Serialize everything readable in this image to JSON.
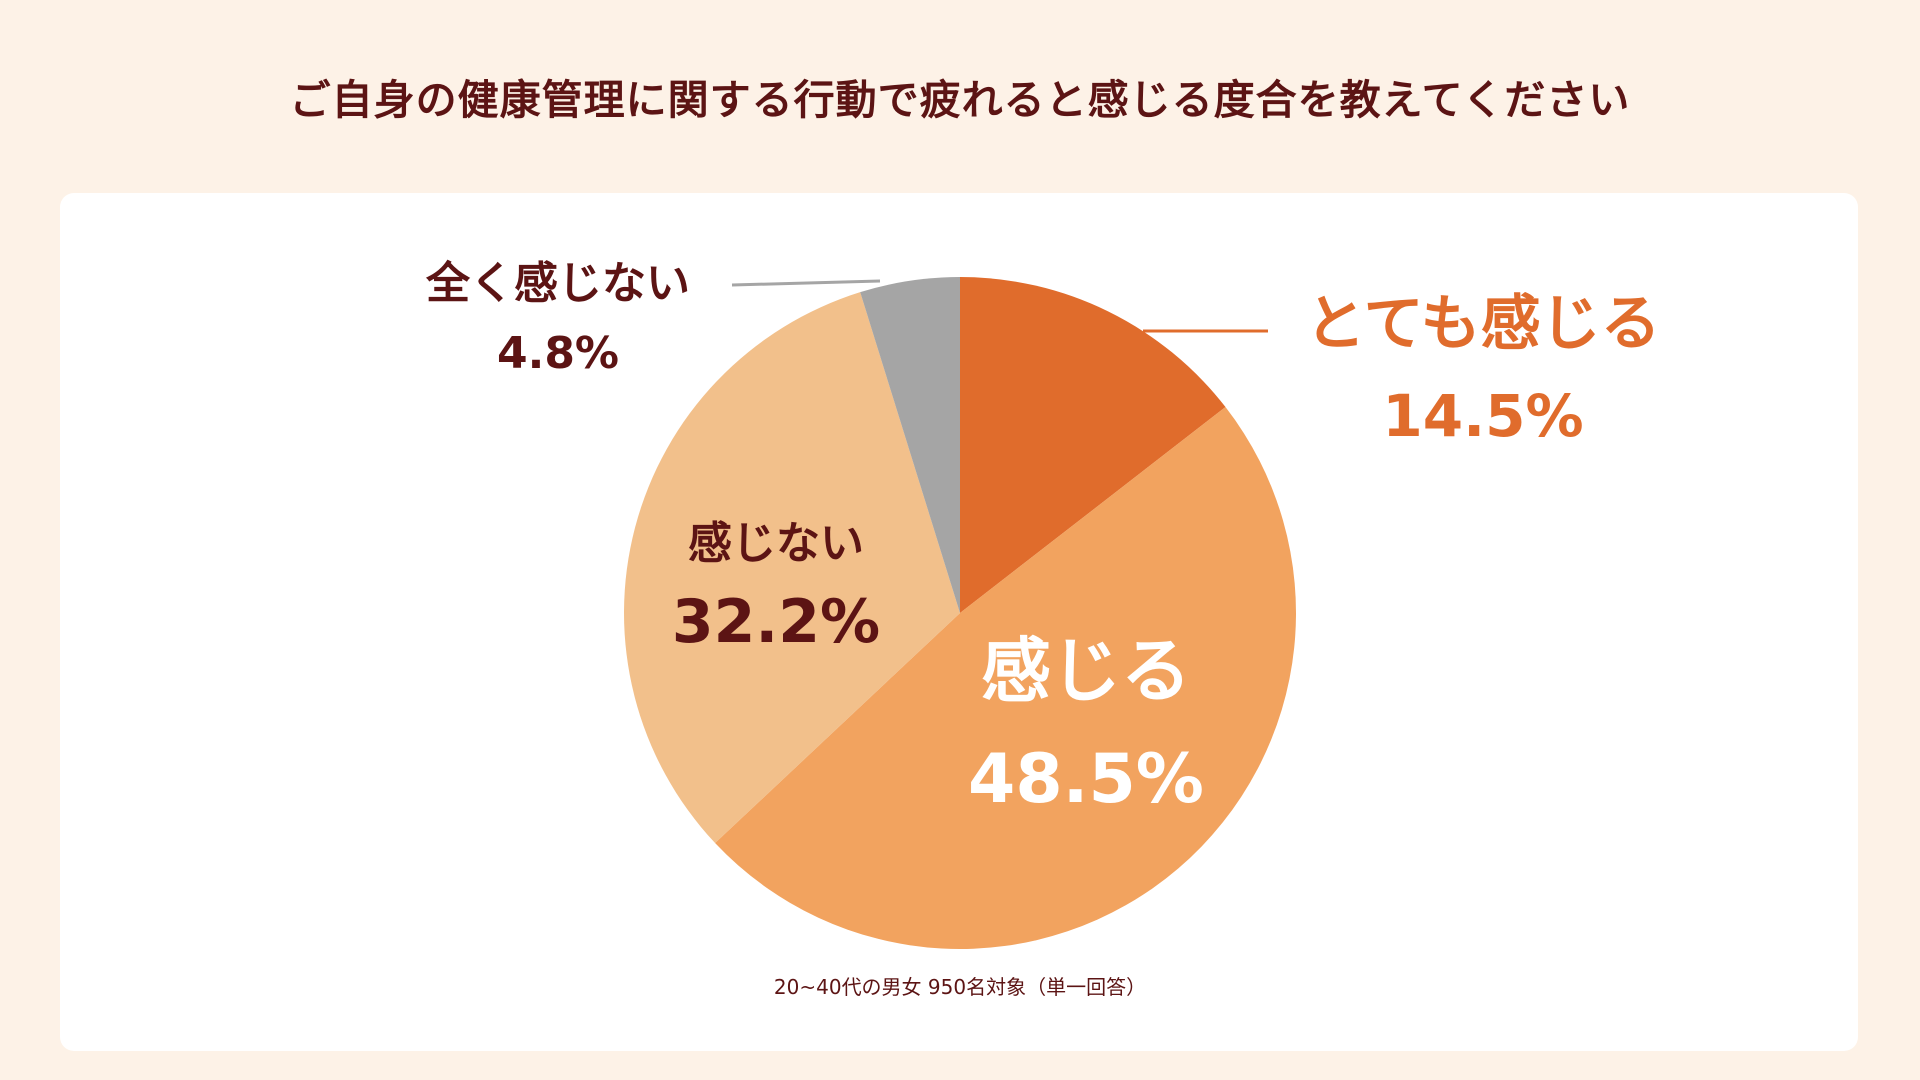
{
  "title": "ご自身の健康管理に関する行動で疲れると感じる度合を教えてください",
  "footnote": "20~40代の男女 950名対象（単一回答）",
  "chart_data": {
    "type": "pie",
    "title": "ご自身の健康管理に関する行動で疲れると感じる度合を教えてください",
    "slices": [
      {
        "label": "とても感じる",
        "value": 14.5,
        "display": "14.5%",
        "color": "#e06c2c",
        "label_color": "#e06c2c"
      },
      {
        "label": "感じる",
        "value": 48.5,
        "display": "48.5%",
        "color": "#f2a35f",
        "label_color": "#ffffff"
      },
      {
        "label": "感じない",
        "value": 32.2,
        "display": "32.2%",
        "color": "#f2c08b",
        "label_color": "#5c1414"
      },
      {
        "label": "全く感じない",
        "value": 4.8,
        "display": "4.8%",
        "color": "#a5a5a5",
        "label_color": "#5c1414"
      }
    ],
    "start_angle": "12 o'clock",
    "direction": "clockwise"
  }
}
